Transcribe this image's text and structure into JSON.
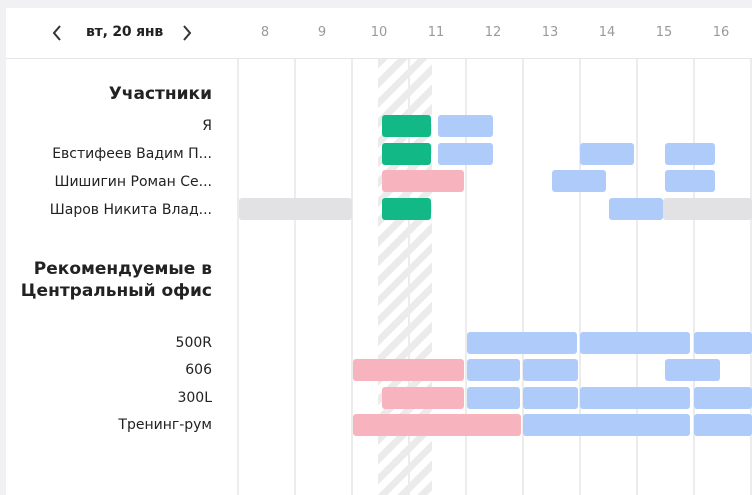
{
  "header": {
    "prev_icon": "chevron-left-icon",
    "next_icon": "chevron-right-icon",
    "date": "вт, 20 янв",
    "hours": [
      "8",
      "9",
      "10",
      "11",
      "12",
      "13",
      "14",
      "15",
      "16"
    ]
  },
  "participants": {
    "title": "Участники",
    "rows": [
      "Я",
      "Евстифеев Вадим П...",
      "Шишигин Роман Се...",
      "Шаров Никита Влад..."
    ]
  },
  "rooms": {
    "title": "Рекомендуемые в Центральный офис",
    "rows": [
      "500R",
      "606",
      "300L",
      "Тренинг-рум"
    ]
  },
  "colors": {
    "busy": "#aecbfa",
    "selected_slot": "#12b886",
    "room_taken": "#f8b4be",
    "non_working": "#e2e2e4"
  }
}
